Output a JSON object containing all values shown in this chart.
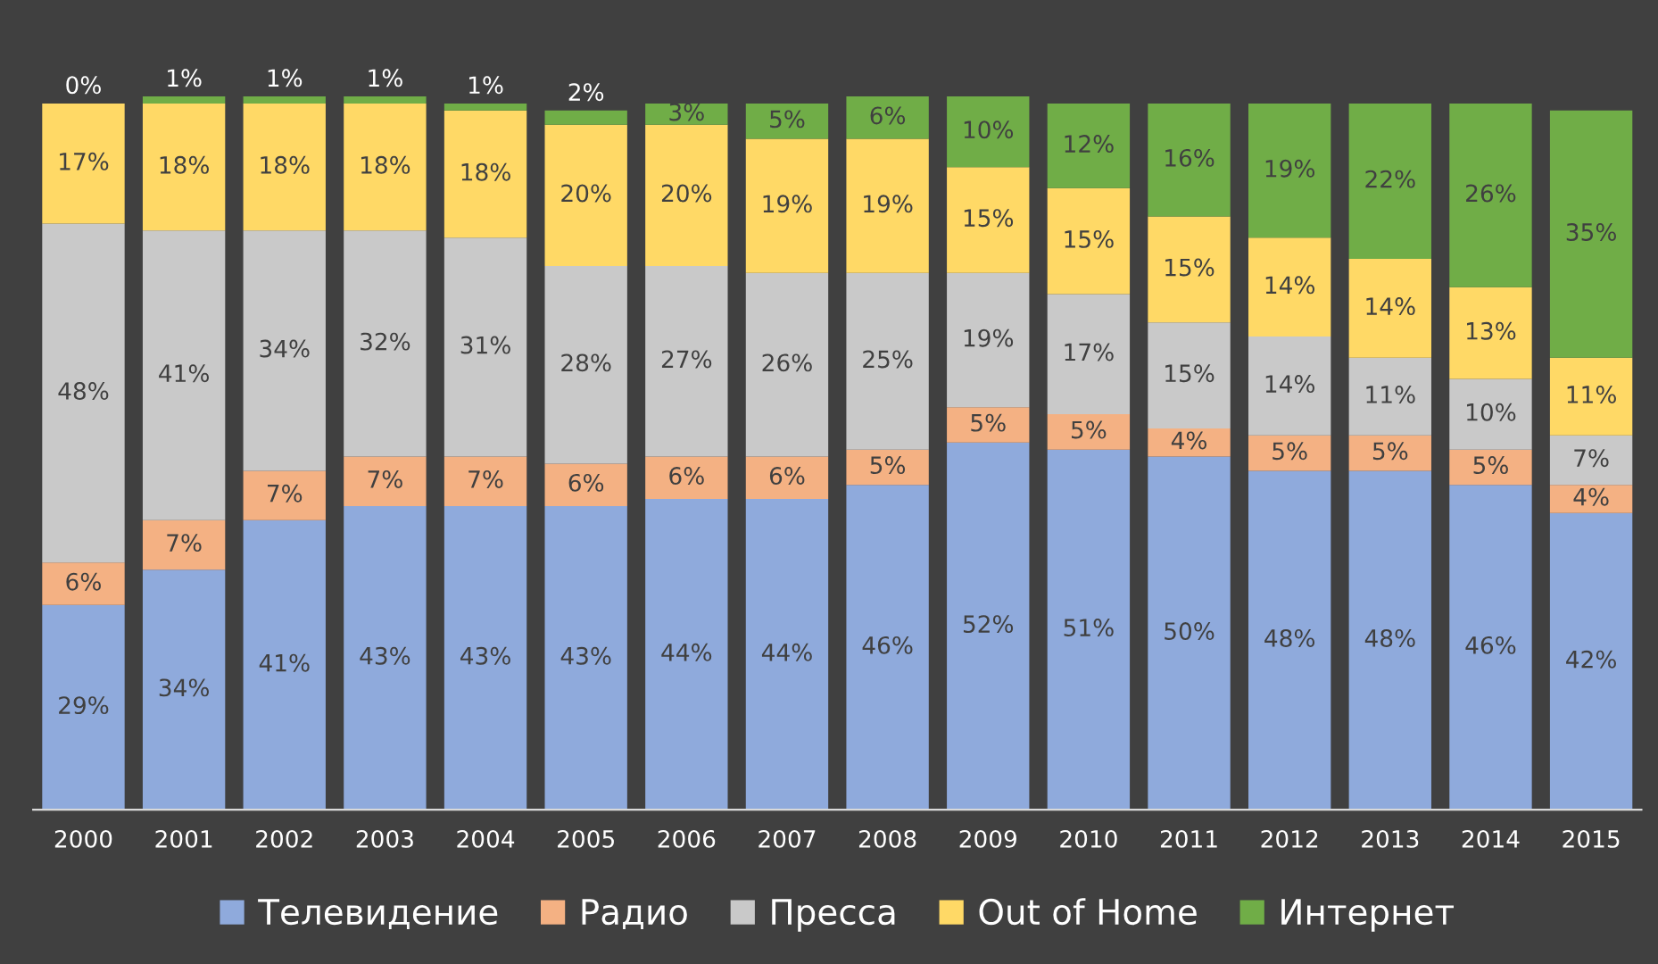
{
  "chart_data": {
    "type": "bar",
    "stacked": true,
    "legend": "bottom",
    "grid": false,
    "categories": [
      "2000",
      "2001",
      "2002",
      "2003",
      "2004",
      "2005",
      "2006",
      "2007",
      "2008",
      "2009",
      "2010",
      "2011",
      "2012",
      "2013",
      "2014",
      "2015"
    ],
    "series": [
      {
        "name": "Телевидение",
        "color": "#8faadc",
        "values": [
          29,
          34,
          41,
          43,
          43,
          43,
          44,
          44,
          46,
          52,
          51,
          50,
          48,
          48,
          46,
          42
        ],
        "value_labels": [
          "29%",
          "34%",
          "41%",
          "43%",
          "43%",
          "43%",
          "44%",
          "44%",
          "46%",
          "52%",
          "51%",
          "50%",
          "48%",
          "48%",
          "46%",
          "42%"
        ]
      },
      {
        "name": "Радио",
        "color": "#f4b183",
        "values": [
          6,
          7,
          7,
          7,
          7,
          6,
          6,
          6,
          5,
          5,
          5,
          4,
          5,
          5,
          5,
          4
        ],
        "value_labels": [
          "6%",
          "7%",
          "7%",
          "7%",
          "7%",
          "6%",
          "6%",
          "6%",
          "5%",
          "5%",
          "5%",
          "4%",
          "5%",
          "5%",
          "5%",
          "4%"
        ]
      },
      {
        "name": "Пресса",
        "color": "#c9c9c9",
        "values": [
          48,
          41,
          34,
          32,
          31,
          28,
          27,
          26,
          25,
          19,
          17,
          15,
          14,
          11,
          10,
          7
        ],
        "value_labels": [
          "48%",
          "41%",
          "34%",
          "32%",
          "31%",
          "28%",
          "27%",
          "26%",
          "25%",
          "19%",
          "17%",
          "15%",
          "14%",
          "11%",
          "10%",
          "7%"
        ]
      },
      {
        "name": "Out of Home",
        "color": "#ffd966",
        "values": [
          17,
          18,
          18,
          18,
          18,
          20,
          20,
          19,
          19,
          15,
          15,
          15,
          14,
          14,
          13,
          11
        ],
        "value_labels": [
          "17%",
          "18%",
          "18%",
          "18%",
          "18%",
          "20%",
          "20%",
          "19%",
          "19%",
          "15%",
          "15%",
          "15%",
          "14%",
          "14%",
          "13%",
          "11%"
        ]
      },
      {
        "name": "Интернет",
        "color": "#70ad47",
        "values": [
          0,
          1,
          1,
          1,
          1,
          2,
          3,
          5,
          6,
          10,
          12,
          16,
          19,
          22,
          26,
          35
        ],
        "value_labels": [
          "0%",
          "1%",
          "1%",
          "1%",
          "1%",
          "2%",
          "3%",
          "5%",
          "6%",
          "10%",
          "12%",
          "16%",
          "19%",
          "22%",
          "26%",
          "35%"
        ]
      }
    ]
  }
}
